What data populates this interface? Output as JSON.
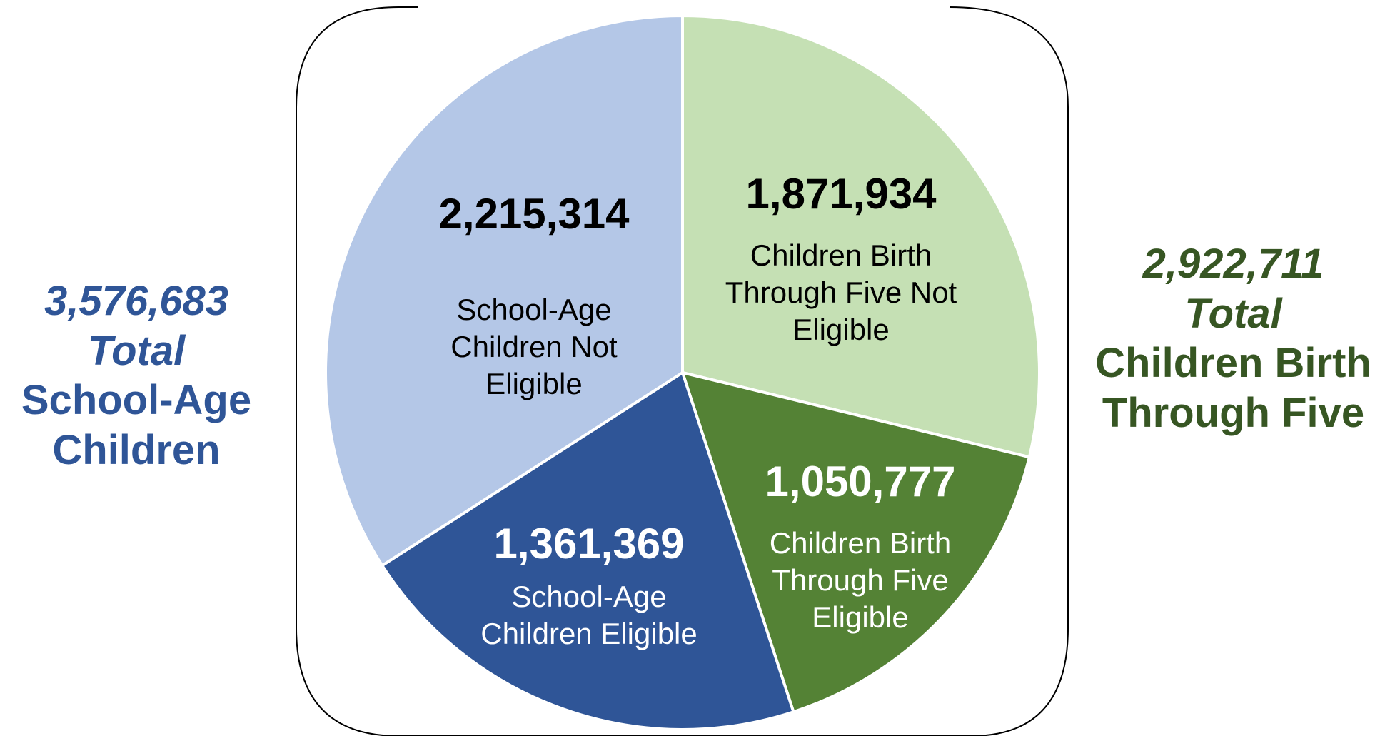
{
  "chart_data": {
    "type": "pie",
    "slices": [
      {
        "value": 1871934,
        "value_label": "1,871,934",
        "label": "Children Birth Through Five Not Eligible",
        "color": "#c5e0b4",
        "text_color": "#000000"
      },
      {
        "value": 1050777,
        "value_label": "1,050,777",
        "label": "Children Birth Through Five Eligible",
        "color": "#548235",
        "text_color": "#ffffff"
      },
      {
        "value": 1361369,
        "value_label": "1,361,369",
        "label": "School-Age Children Eligible",
        "color": "#2f5597",
        "text_color": "#ffffff"
      },
      {
        "value": 2215314,
        "value_label": "2,215,314",
        "label": "School-Age Children Not Eligible",
        "color": "#b4c7e7",
        "text_color": "#000000"
      }
    ],
    "start": "12 o'clock",
    "direction": "clockwise"
  },
  "totals": {
    "school_age": {
      "value": "3,576,683",
      "word": "Total",
      "label": "School-Age Children",
      "color": "#2f5597"
    },
    "birth_five": {
      "value": "2,922,711",
      "word": "Total",
      "label": "Children Birth Through Five",
      "color": "#375623"
    }
  }
}
